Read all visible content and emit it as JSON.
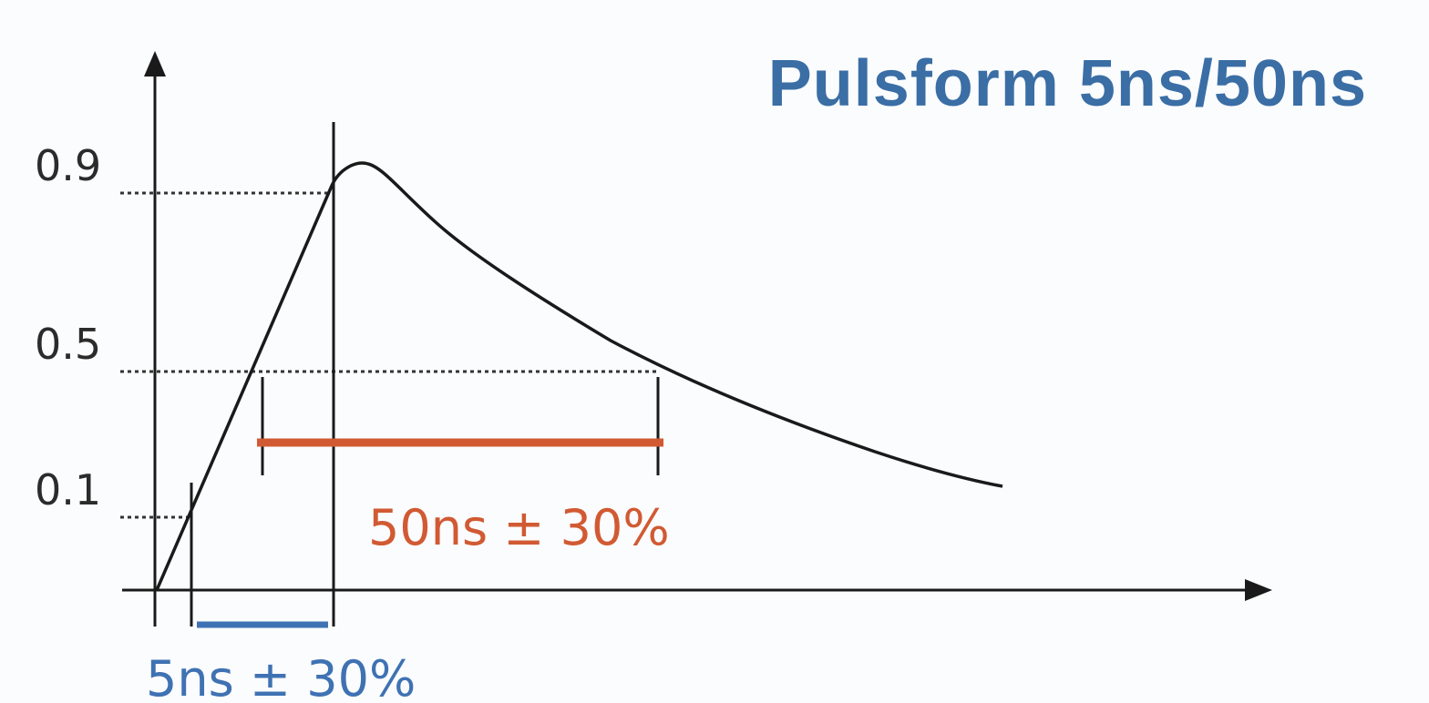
{
  "title": "Pulsform 5ns/50ns",
  "y_ticks": {
    "high": "0.9",
    "mid": "0.5",
    "low": "0.1"
  },
  "rise_time_label": "5ns ± 30%",
  "pulse_width_label": "50ns ± 30%",
  "colors": {
    "title": "#3a6ea5",
    "rise_time": "#3f72b3",
    "pulse_width": "#d15a33",
    "axis": "#1a1a1a",
    "tick_label": "#2b2b2b",
    "background": "#fbfcfd"
  }
}
